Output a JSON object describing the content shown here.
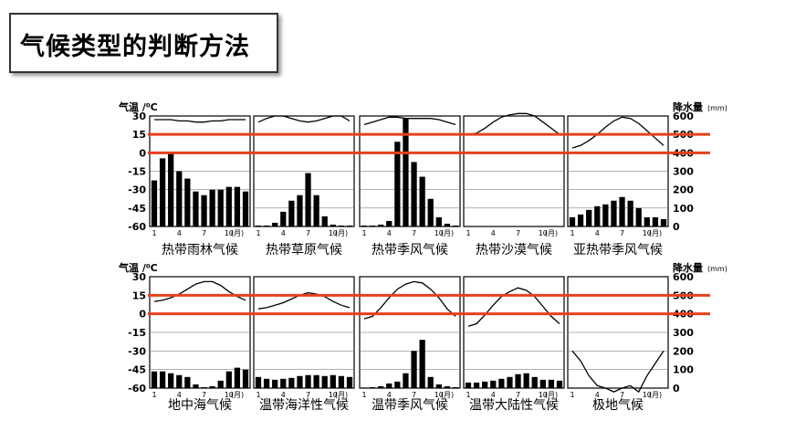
{
  "page_title": "气候类型的判断方法",
  "axes": {
    "left_label": "气温 /⁰C",
    "right_label": "降水量",
    "right_unit": "(mm)",
    "temp_ticks": [
      "30",
      "15",
      "0",
      "-15",
      "-30",
      "-45",
      "-60"
    ],
    "precip_ticks": [
      "600",
      "500",
      "400",
      "300",
      "200",
      "100",
      "0"
    ],
    "month_ticks": [
      "1",
      "4",
      "7",
      "10"
    ],
    "month_unit": "(月)"
  },
  "colors": {
    "guide_line": "#e8401c",
    "ink": "#000000"
  },
  "chart_data": [
    {
      "type": "bar+line",
      "name": "热带雨林气候",
      "temperature": [
        27,
        27,
        27,
        26,
        26,
        25,
        25,
        26,
        26,
        27,
        27,
        27
      ],
      "precipitation": [
        250,
        370,
        400,
        300,
        260,
        190,
        170,
        200,
        200,
        215,
        215,
        190
      ]
    },
    {
      "type": "bar+line",
      "name": "热带草原气候",
      "temperature": [
        25,
        28,
        30,
        30,
        28,
        26,
        25,
        26,
        28,
        30,
        30,
        26
      ],
      "precipitation": [
        5,
        5,
        20,
        80,
        140,
        170,
        290,
        170,
        55,
        10,
        5,
        5
      ]
    },
    {
      "type": "bar+line",
      "name": "热带季风气候",
      "temperature": [
        23,
        25,
        27,
        29,
        29,
        28,
        28,
        28,
        28,
        27,
        25,
        23
      ],
      "precipitation": [
        5,
        5,
        10,
        30,
        460,
        590,
        350,
        270,
        150,
        50,
        15,
        5
      ]
    },
    {
      "type": "bar+line",
      "name": "热带沙漠气候",
      "temperature": [
        15,
        16,
        20,
        25,
        29,
        31,
        32,
        32,
        30,
        25,
        20,
        15
      ],
      "precipitation": [
        0,
        0,
        0,
        0,
        2,
        0,
        0,
        0,
        0,
        0,
        0,
        0
      ]
    },
    {
      "type": "bar+line",
      "name": "亚热带季风气候",
      "temperature": [
        4,
        6,
        10,
        15,
        21,
        26,
        29,
        28,
        24,
        18,
        12,
        6
      ],
      "precipitation": [
        50,
        65,
        90,
        110,
        120,
        140,
        160,
        140,
        100,
        50,
        50,
        40
      ]
    },
    {
      "type": "bar+line",
      "name": "地中海气候",
      "temperature": [
        10,
        11,
        13,
        16,
        20,
        24,
        26,
        26,
        23,
        18,
        14,
        11
      ],
      "precipitation": [
        90,
        90,
        80,
        70,
        60,
        20,
        5,
        10,
        40,
        90,
        110,
        100
      ]
    },
    {
      "type": "bar+line",
      "name": "温带海洋性气候",
      "temperature": [
        4,
        5,
        7,
        9,
        12,
        15,
        17,
        16,
        14,
        10,
        7,
        5
      ],
      "precipitation": [
        60,
        50,
        45,
        50,
        55,
        65,
        70,
        70,
        65,
        70,
        65,
        60
      ]
    },
    {
      "type": "bar+line",
      "name": "温带季风气候",
      "temperature": [
        -4,
        -2,
        5,
        13,
        20,
        24,
        26,
        25,
        20,
        13,
        4,
        -2
      ],
      "precipitation": [
        3,
        5,
        10,
        25,
        35,
        80,
        200,
        260,
        60,
        20,
        10,
        5
      ]
    },
    {
      "type": "bar+line",
      "name": "温带大陆性气候",
      "temperature": [
        -10,
        -8,
        -1,
        7,
        14,
        18,
        21,
        19,
        14,
        6,
        -2,
        -8
      ],
      "precipitation": [
        30,
        30,
        35,
        40,
        50,
        60,
        75,
        80,
        60,
        45,
        45,
        40
      ]
    },
    {
      "type": "bar+line",
      "name": "极地气候",
      "temperature": [
        -30,
        -38,
        -50,
        -58,
        -60,
        -63,
        -60,
        -58,
        -63,
        -50,
        -40,
        -30
      ],
      "precipitation": [
        1,
        1,
        1,
        1,
        1,
        1,
        1,
        1,
        1,
        1,
        1,
        1
      ]
    }
  ]
}
